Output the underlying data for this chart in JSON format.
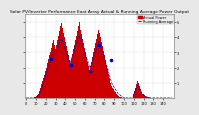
{
  "title": "Solar PV/Inverter Performance East Array Actual & Running Average Power Output",
  "title_fontsize": 3.2,
  "bg_color": "#e8e8e8",
  "plot_bg_color": "#ffffff",
  "bar_color": "#cc0000",
  "avg_line_color": "#0000cc",
  "dot_color": "#0000cc",
  "grid_color": "#aaaaaa",
  "ylim": [
    0,
    5.5
  ],
  "yticks": [
    1,
    2,
    3,
    4,
    5
  ],
  "ytick_labels": [
    "1",
    "2",
    "3",
    "4",
    "5"
  ],
  "num_bars": 150,
  "bar_heights": [
    0.02,
    0.02,
    0.02,
    0.02,
    0.02,
    0.02,
    0.02,
    0.02,
    0.02,
    0.05,
    0.1,
    0.15,
    0.2,
    0.3,
    0.5,
    0.7,
    0.9,
    1.1,
    1.3,
    1.5,
    1.8,
    2.0,
    2.3,
    2.6,
    2.8,
    3.0,
    3.3,
    3.6,
    3.8,
    3.5,
    3.2,
    3.5,
    3.8,
    4.1,
    4.4,
    4.7,
    4.9,
    4.6,
    4.3,
    4.0,
    3.7,
    3.4,
    3.1,
    2.8,
    2.5,
    2.3,
    2.6,
    2.9,
    3.2,
    3.5,
    3.8,
    4.1,
    4.4,
    4.7,
    5.0,
    4.8,
    4.5,
    4.2,
    3.9,
    3.6,
    3.3,
    3.0,
    2.7,
    2.4,
    2.1,
    1.8,
    2.1,
    2.4,
    2.7,
    3.0,
    3.3,
    3.6,
    3.9,
    4.2,
    4.5,
    4.3,
    4.0,
    3.7,
    3.4,
    3.1,
    2.8,
    2.5,
    2.2,
    1.9,
    1.6,
    1.3,
    1.0,
    0.8,
    0.7,
    0.6,
    0.5,
    0.4,
    0.3,
    0.2,
    0.15,
    0.1,
    0.08,
    0.05,
    0.03,
    0.02,
    0.02,
    0.02,
    0.02,
    0.02,
    0.02,
    0.02,
    0.02,
    0.02,
    0.02,
    0.02,
    0.3,
    0.5,
    0.7,
    0.9,
    1.1,
    1.0,
    0.8,
    0.6,
    0.4,
    0.3,
    0.25,
    0.2,
    0.15,
    0.1,
    0.08,
    0.05,
    0.03,
    0.02,
    0.02,
    0.02,
    0.02,
    0.02,
    0.02,
    0.02,
    0.02,
    0.02,
    0.02,
    0.02,
    0.02,
    0.02,
    0.02,
    0.02,
    0.02,
    0.02,
    0.02,
    0.02,
    0.02,
    0.02,
    0.02,
    0.02
  ],
  "avg_heights": [
    0.02,
    0.02,
    0.02,
    0.02,
    0.02,
    0.02,
    0.02,
    0.02,
    0.02,
    0.03,
    0.06,
    0.1,
    0.14,
    0.2,
    0.35,
    0.5,
    0.7,
    0.9,
    1.1,
    1.3,
    1.5,
    1.7,
    1.9,
    2.1,
    2.3,
    2.5,
    2.7,
    2.9,
    3.1,
    3.0,
    2.9,
    3.0,
    3.2,
    3.4,
    3.6,
    3.8,
    3.9,
    3.8,
    3.6,
    3.4,
    3.2,
    3.0,
    2.8,
    2.6,
    2.4,
    2.3,
    2.5,
    2.7,
    2.9,
    3.1,
    3.3,
    3.5,
    3.7,
    3.9,
    4.1,
    4.0,
    3.8,
    3.6,
    3.4,
    3.2,
    3.0,
    2.8,
    2.6,
    2.4,
    2.2,
    2.0,
    2.1,
    2.3,
    2.5,
    2.7,
    2.9,
    3.1,
    3.3,
    3.5,
    3.7,
    3.6,
    3.4,
    3.2,
    3.0,
    2.8,
    2.6,
    2.4,
    2.2,
    2.0,
    1.8,
    1.5,
    1.3,
    1.1,
    0.9,
    0.8,
    0.7,
    0.6,
    0.5,
    0.4,
    0.3,
    0.25,
    0.2,
    0.15,
    0.1,
    0.07,
    0.05,
    0.04,
    0.03,
    0.02,
    0.02,
    0.02,
    0.02,
    0.02,
    0.02,
    0.02,
    0.25,
    0.4,
    0.55,
    0.7,
    0.8,
    0.75,
    0.65,
    0.5,
    0.35,
    0.25,
    0.2,
    0.15,
    0.12,
    0.09,
    0.07,
    0.05,
    0.04,
    0.03,
    0.02,
    0.02,
    0.02,
    0.02,
    0.02,
    0.02,
    0.02,
    0.02,
    0.02,
    0.02,
    0.02,
    0.02,
    0.02,
    0.02,
    0.02,
    0.02,
    0.02,
    0.02,
    0.02,
    0.02,
    0.02,
    0.02
  ],
  "dot_x": [
    25,
    46,
    65,
    74,
    87
  ],
  "dot_y": [
    2.6,
    2.2,
    1.8,
    3.5,
    2.5
  ],
  "xlabel_fontsize": 2.5,
  "tick_fontsize": 2.5,
  "legend_fontsize": 2.5,
  "legend_items": [
    "Actual Power",
    "Running Average"
  ],
  "legend_colors": [
    "#cc0000",
    "#0000cc"
  ],
  "text_color": "#000000",
  "spine_color": "#888888"
}
